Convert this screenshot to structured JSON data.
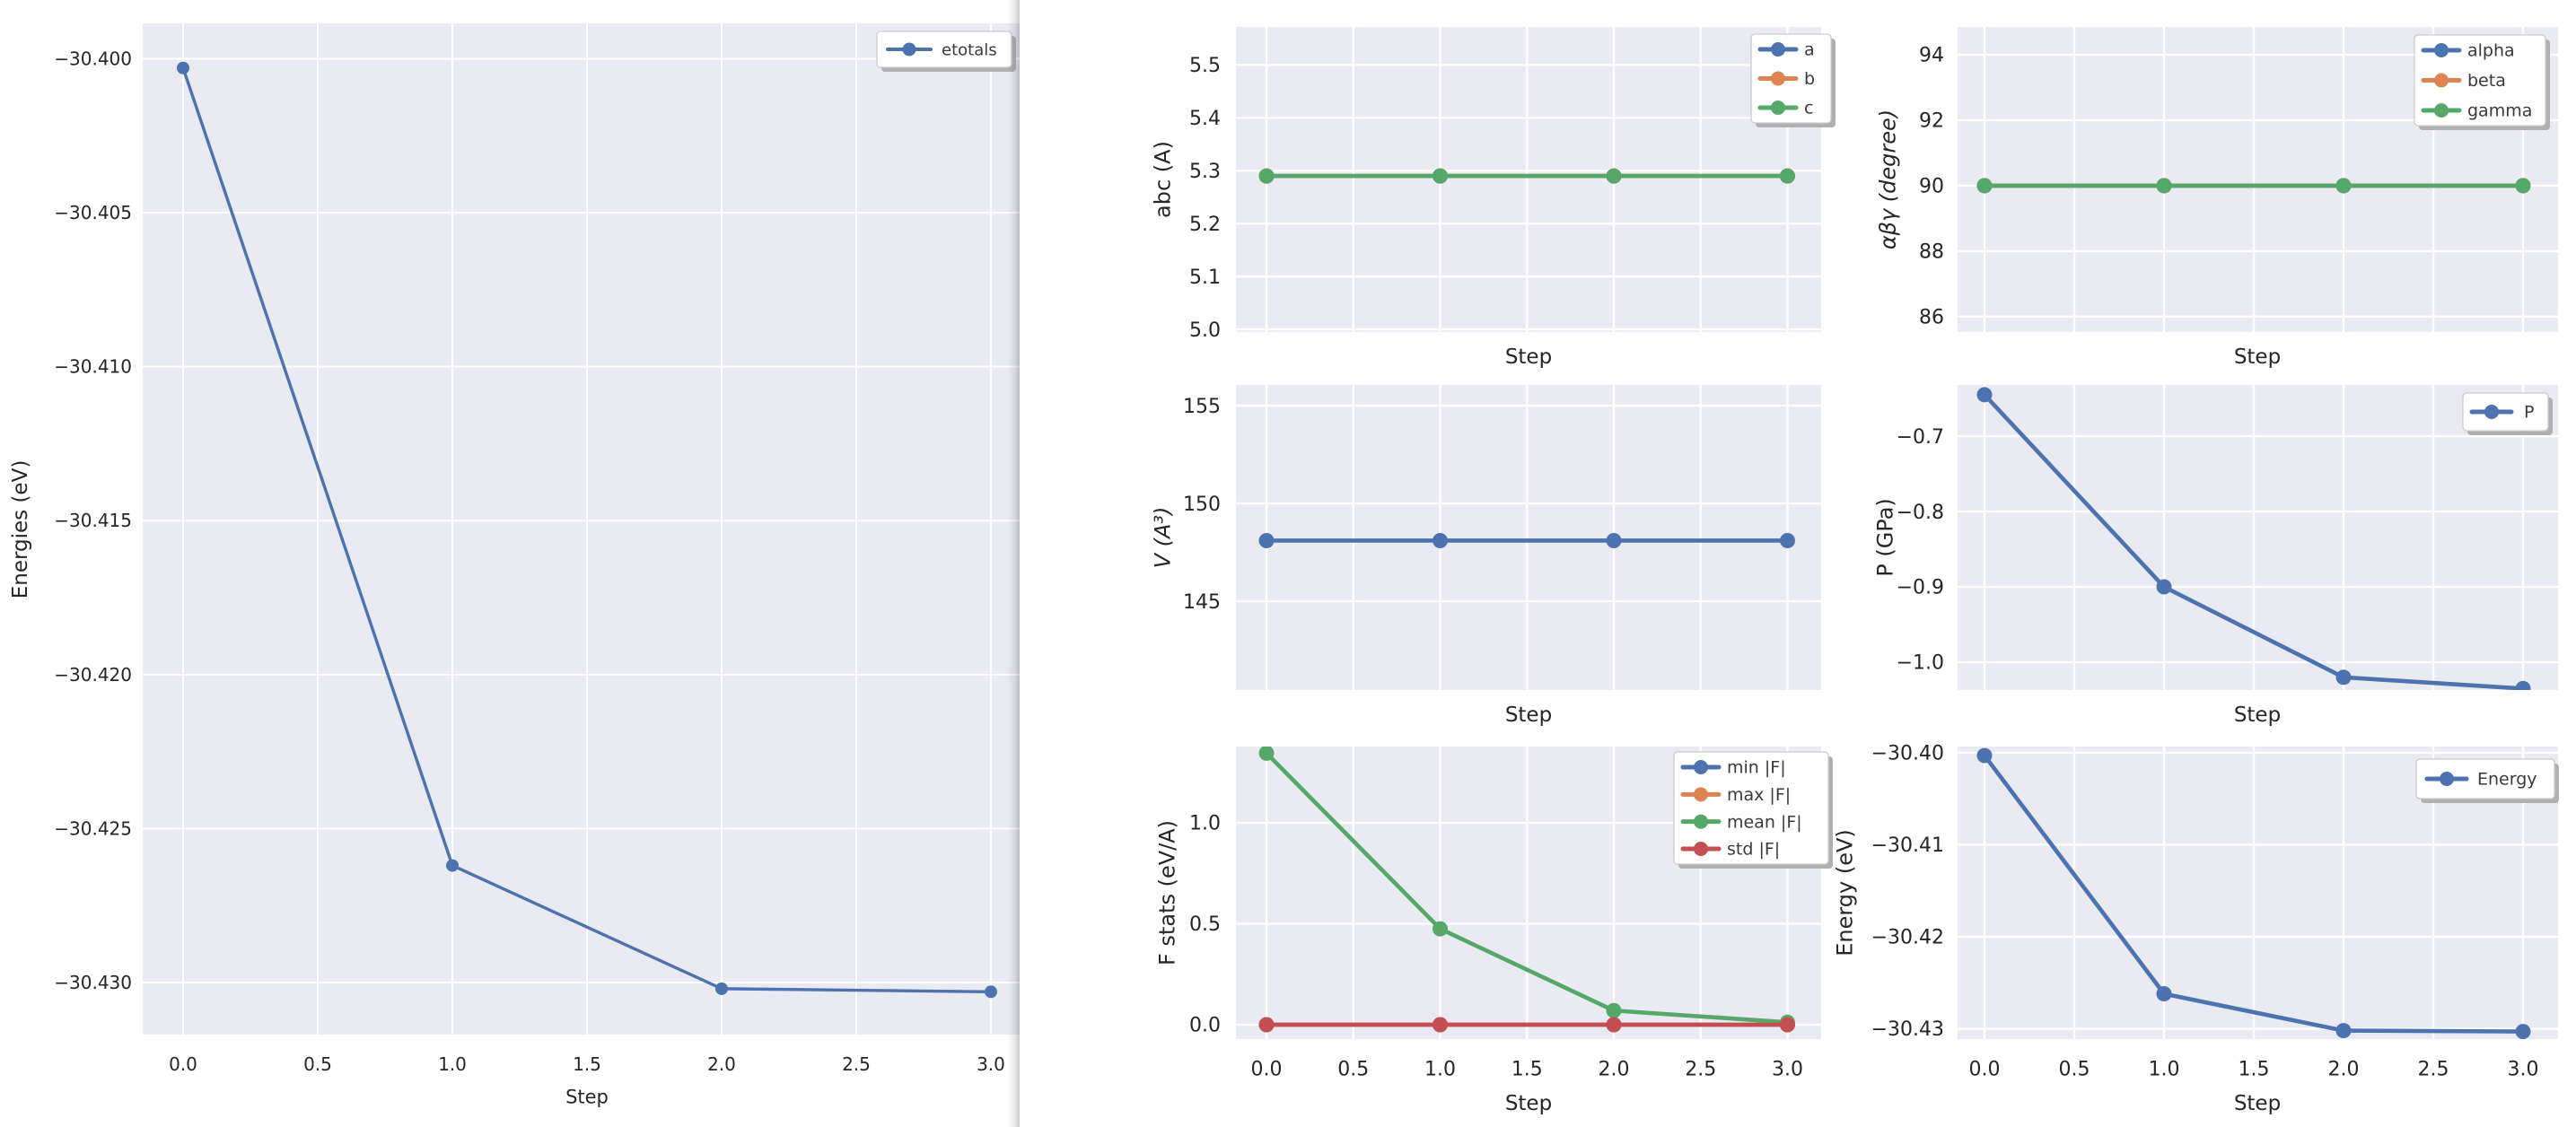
{
  "palette": {
    "blue": "#4C72B0",
    "orange": "#DD8452",
    "green": "#55A868",
    "red": "#C44E52",
    "axes_bg": "#EAEAF2",
    "grid": "#FFFFFF",
    "text": "#262626",
    "legend_text": "#3A3A3A",
    "legend_border": "#CCCCCC",
    "legend_shadow": "#B0B0B0",
    "figure_bg": "#FFFFFF"
  },
  "chart_data": [
    {
      "figure": "energies",
      "subplots": [
        {
          "id": "etotals",
          "type": "line",
          "xlabel": "Step",
          "ylabel": "Energies (eV)",
          "x": [
            0,
            1,
            2,
            3
          ],
          "series": [
            {
              "name": "etotals",
              "color": "blue",
              "values": [
                -30.4003,
                -30.4262,
                -30.4302,
                -30.4303
              ]
            }
          ],
          "xticks": {
            "values": [
              0,
              0.5,
              1,
              1.5,
              2,
              2.5,
              3
            ],
            "labels": [
              "0.0",
              "0.5",
              "1.0",
              "1.5",
              "2.0",
              "2.5",
              "3.0"
            ],
            "show_labels": true
          },
          "yticks": {
            "values": [
              -30.4,
              -30.405,
              -30.41,
              -30.415,
              -30.42,
              -30.425,
              -30.43
            ],
            "labels": [
              "−30.400",
              "−30.405",
              "−30.410",
              "−30.415",
              "−30.420",
              "−30.425",
              "−30.430"
            ]
          },
          "xlim": [
            -0.15,
            3.1067
          ],
          "ylim": [
            -30.43169,
            -30.39885
          ],
          "legend": {
            "visible": true,
            "location": "upper right"
          }
        }
      ]
    },
    {
      "figure": "relaxation_summary",
      "subplots": [
        {
          "id": "abc",
          "type": "line",
          "xlabel": "Step",
          "ylabel": "abc (A)",
          "x": [
            0,
            1,
            2,
            3
          ],
          "series": [
            {
              "name": "a",
              "color": "blue",
              "values": [
                5.29,
                5.29,
                5.29,
                5.29
              ]
            },
            {
              "name": "b",
              "color": "orange",
              "values": [
                5.29,
                5.29,
                5.29,
                5.29
              ]
            },
            {
              "name": "c",
              "color": "green",
              "values": [
                5.29,
                5.29,
                5.29,
                5.29
              ]
            }
          ],
          "xticks": {
            "values": [
              0,
              0.5,
              1,
              1.5,
              2,
              2.5,
              3
            ],
            "labels": [
              "0.0",
              "0.5",
              "1.0",
              "1.5",
              "2.0",
              "2.5",
              "3.0"
            ],
            "show_labels": false
          },
          "yticks": {
            "values": [
              5.0,
              5.1,
              5.2,
              5.3,
              5.4,
              5.5
            ],
            "labels": [
              "5.0",
              "5.1",
              "5.2",
              "5.3",
              "5.4",
              "5.5"
            ]
          },
          "xlim": [
            -0.176,
            3.194
          ],
          "ylim": [
            4.995,
            5.572
          ],
          "legend": {
            "visible": true,
            "location": "upper right"
          }
        },
        {
          "id": "angles",
          "type": "line",
          "xlabel": "Step",
          "ylabel": "αβγ (degree)",
          "x": [
            0,
            1,
            2,
            3
          ],
          "series": [
            {
              "name": "alpha",
              "color": "blue",
              "values": [
                90,
                90,
                90,
                90
              ]
            },
            {
              "name": "beta",
              "color": "orange",
              "values": [
                90,
                90,
                90,
                90
              ]
            },
            {
              "name": "gamma",
              "color": "green",
              "values": [
                90,
                90,
                90,
                90
              ]
            }
          ],
          "xticks": {
            "values": [
              0,
              0.5,
              1,
              1.5,
              2,
              2.5,
              3
            ],
            "labels": [
              "0.0",
              "0.5",
              "1.0",
              "1.5",
              "2.0",
              "2.5",
              "3.0"
            ],
            "show_labels": false
          },
          "yticks": {
            "values": [
              86,
              88,
              90,
              92,
              94
            ],
            "labels": [
              "86",
              "88",
              "90",
              "92",
              "94"
            ]
          },
          "xlim": [
            -0.15,
            3.195
          ],
          "ylim": [
            85.53,
            94.85
          ],
          "legend": {
            "visible": true,
            "location": "upper right"
          }
        },
        {
          "id": "volume",
          "type": "line",
          "xlabel": "Step",
          "ylabel": "V (A³)",
          "x": [
            0,
            1,
            2,
            3
          ],
          "series": [
            {
              "name": "V",
              "color": "blue",
              "values": [
                148.1,
                148.1,
                148.1,
                148.1
              ],
              "in_legend": false
            }
          ],
          "xticks": {
            "values": [
              0,
              0.5,
              1,
              1.5,
              2,
              2.5,
              3
            ],
            "labels": [
              "0.0",
              "0.5",
              "1.0",
              "1.5",
              "2.0",
              "2.5",
              "3.0"
            ],
            "show_labels": false
          },
          "yticks": {
            "values": [
              145,
              150,
              155
            ],
            "labels": [
              "145",
              "150",
              "155"
            ]
          },
          "xlim": [
            -0.176,
            3.194
          ],
          "ylim": [
            140.46,
            156.06
          ],
          "legend": {
            "visible": false
          }
        },
        {
          "id": "pressure",
          "type": "line",
          "xlabel": "Step",
          "ylabel": "P (GPa)",
          "x": [
            0,
            1,
            2,
            3
          ],
          "series": [
            {
              "name": "P",
              "color": "blue",
              "values": [
                -0.645,
                -0.9,
                -1.02,
                -1.035
              ]
            }
          ],
          "xticks": {
            "values": [
              0,
              0.5,
              1,
              1.5,
              2,
              2.5,
              3
            ],
            "labels": [
              "0.0",
              "0.5",
              "1.0",
              "1.5",
              "2.0",
              "2.5",
              "3.0"
            ],
            "show_labels": false
          },
          "yticks": {
            "values": [
              -0.7,
              -0.8,
              -0.9,
              -1.0
            ],
            "labels": [
              "−0.7",
              "−0.8",
              "−0.9",
              "−1.0"
            ]
          },
          "xlim": [
            -0.15,
            3.195
          ],
          "ylim": [
            -1.0369,
            -0.632
          ],
          "legend": {
            "visible": true,
            "location": "upper right"
          }
        },
        {
          "id": "fstats",
          "type": "line",
          "xlabel": "Step",
          "ylabel": "F stats (eV/A)",
          "x": [
            0,
            1,
            2,
            3
          ],
          "series": [
            {
              "name": "min |F|",
              "color": "blue",
              "values": [
                0,
                0,
                0,
                0
              ]
            },
            {
              "name": "max |F|",
              "color": "orange",
              "values": [
                0,
                0,
                0,
                0
              ]
            },
            {
              "name": "mean |F|",
              "color": "green",
              "values": [
                1.345,
                0.475,
                0.07,
                0.012
              ]
            },
            {
              "name": "std |F|",
              "color": "red",
              "values": [
                0,
                0,
                0,
                0
              ]
            }
          ],
          "xticks": {
            "values": [
              0,
              0.5,
              1,
              1.5,
              2,
              2.5,
              3
            ],
            "labels": [
              "0.0",
              "0.5",
              "1.0",
              "1.5",
              "2.0",
              "2.5",
              "3.0"
            ],
            "show_labels": true
          },
          "yticks": {
            "values": [
              0.0,
              0.5,
              1.0
            ],
            "labels": [
              "0.0",
              "0.5",
              "1.0"
            ]
          },
          "xlim": [
            -0.176,
            3.194
          ],
          "ylim": [
            -0.0711,
            1.3778
          ],
          "legend": {
            "visible": true,
            "location": "upper right"
          }
        },
        {
          "id": "energy",
          "type": "line",
          "xlabel": "Step",
          "ylabel": "Energy (eV)",
          "x": [
            0,
            1,
            2,
            3
          ],
          "series": [
            {
              "name": "Energy",
              "color": "blue",
              "values": [
                -30.4003,
                -30.4262,
                -30.4302,
                -30.4303
              ]
            }
          ],
          "xticks": {
            "values": [
              0,
              0.5,
              1,
              1.5,
              2,
              2.5,
              3
            ],
            "labels": [
              "0.0",
              "0.5",
              "1.0",
              "1.5",
              "2.0",
              "2.5",
              "3.0"
            ],
            "show_labels": true
          },
          "yticks": {
            "values": [
              -30.4,
              -30.41,
              -30.42,
              -30.43
            ],
            "labels": [
              "−30.40",
              "−30.41",
              "−30.42",
              "−30.43"
            ]
          },
          "xlim": [
            -0.15,
            3.195
          ],
          "ylim": [
            -30.43112,
            -30.39932
          ],
          "legend": {
            "visible": true,
            "location": "upper right"
          }
        }
      ]
    }
  ]
}
